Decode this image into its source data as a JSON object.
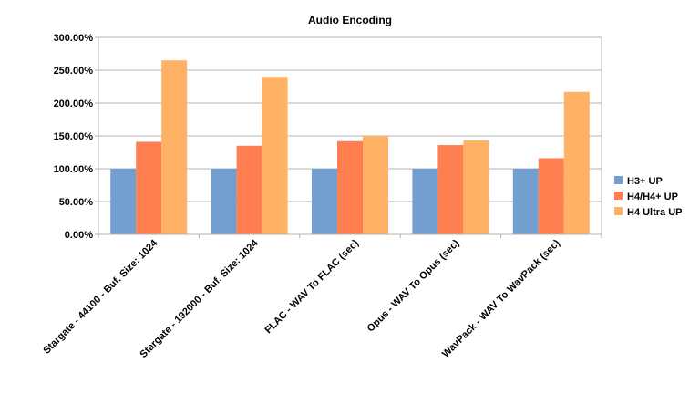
{
  "chart_data": {
    "type": "bar",
    "title": "Audio Encoding",
    "xlabel": "",
    "ylabel": "",
    "ylim": [
      0,
      300
    ],
    "yticks": [
      0,
      50,
      100,
      150,
      200,
      250,
      300
    ],
    "ytick_labels": [
      "0.00%",
      "50.00%",
      "100.00%",
      "150.00%",
      "200.00%",
      "250.00%",
      "300.00%"
    ],
    "grid": "horizontal",
    "legend_position": "right",
    "categories": [
      "Stargate - 44100 - Buf. Size: 1024",
      "Stargate - 192000 - Buf. Size: 1024",
      "FLAC - WAV To FLAC (sec)",
      "Opus - WAV To Opus (sec)",
      "WavPack - WAV To WavPack (sec)"
    ],
    "series": [
      {
        "name": "H3+ UP",
        "color": "#729fcf",
        "values": [
          100,
          100,
          100,
          100,
          100
        ]
      },
      {
        "name": "H4/H4+ UP",
        "color": "#ff7f50",
        "values": [
          141,
          135,
          142,
          136,
          116
        ]
      },
      {
        "name": "H4 Ultra UP",
        "color": "#ffb266",
        "values": [
          265,
          240,
          150,
          143,
          217
        ]
      }
    ]
  }
}
